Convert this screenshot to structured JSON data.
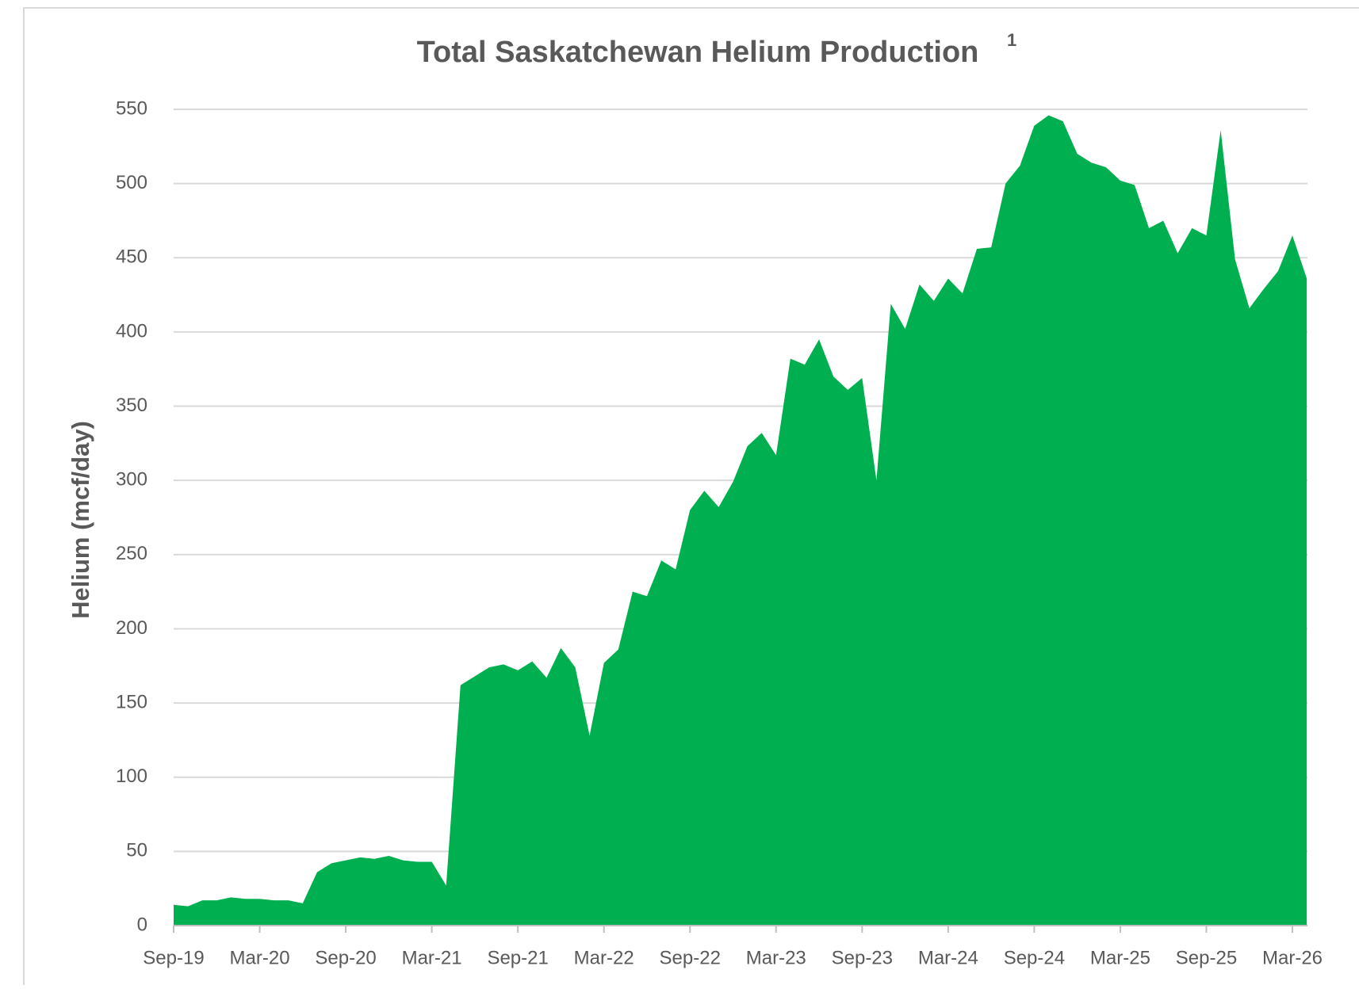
{
  "chart_data": {
    "type": "area",
    "title": "Total Saskatchewan Helium Production",
    "title_note": "1",
    "y_label": "Helium (mcf/day)",
    "color": "#00b050",
    "grid": true,
    "ylim": [
      0,
      550
    ],
    "yticks": [
      0,
      50,
      100,
      150,
      200,
      250,
      300,
      350,
      400,
      450,
      500,
      550
    ],
    "categories": [
      "Sep-19",
      null,
      null,
      null,
      null,
      null,
      "Mar-20",
      null,
      null,
      null,
      null,
      null,
      "Sep-20",
      null,
      null,
      null,
      null,
      null,
      "Mar-21",
      null,
      null,
      null,
      null,
      null,
      "Sep-21",
      null,
      null,
      null,
      null,
      null,
      "Mar-22",
      null,
      null,
      null,
      null,
      null,
      "Sep-22",
      null,
      null,
      null,
      null,
      null,
      "Mar-23",
      null,
      null,
      null,
      null,
      null,
      "Sep-23",
      null,
      null,
      null,
      null,
      null,
      "Mar-24",
      null,
      null,
      null,
      null,
      null,
      "Sep-24",
      null,
      null,
      null,
      null,
      null,
      "Mar-25",
      null,
      null,
      null,
      null,
      null,
      "Sep-25",
      null,
      null,
      null,
      null,
      null,
      "Mar-26",
      null
    ],
    "values": [
      14,
      13,
      17,
      17,
      19,
      18,
      18,
      17,
      17,
      15,
      36,
      42,
      44,
      46,
      45,
      47,
      44,
      43,
      43,
      27,
      162,
      168,
      174,
      176,
      172,
      178,
      167,
      187,
      174,
      128,
      177,
      186,
      225,
      222,
      246,
      240,
      280,
      293,
      282,
      299,
      323,
      332,
      317,
      382,
      378,
      395,
      370,
      361,
      369,
      300,
      419,
      402,
      432,
      421,
      436,
      426,
      456,
      457,
      500,
      512,
      539,
      546,
      542,
      520,
      514,
      511,
      502,
      499,
      470,
      475,
      453,
      470,
      465,
      536,
      449,
      416,
      429,
      441,
      465,
      436
    ]
  }
}
